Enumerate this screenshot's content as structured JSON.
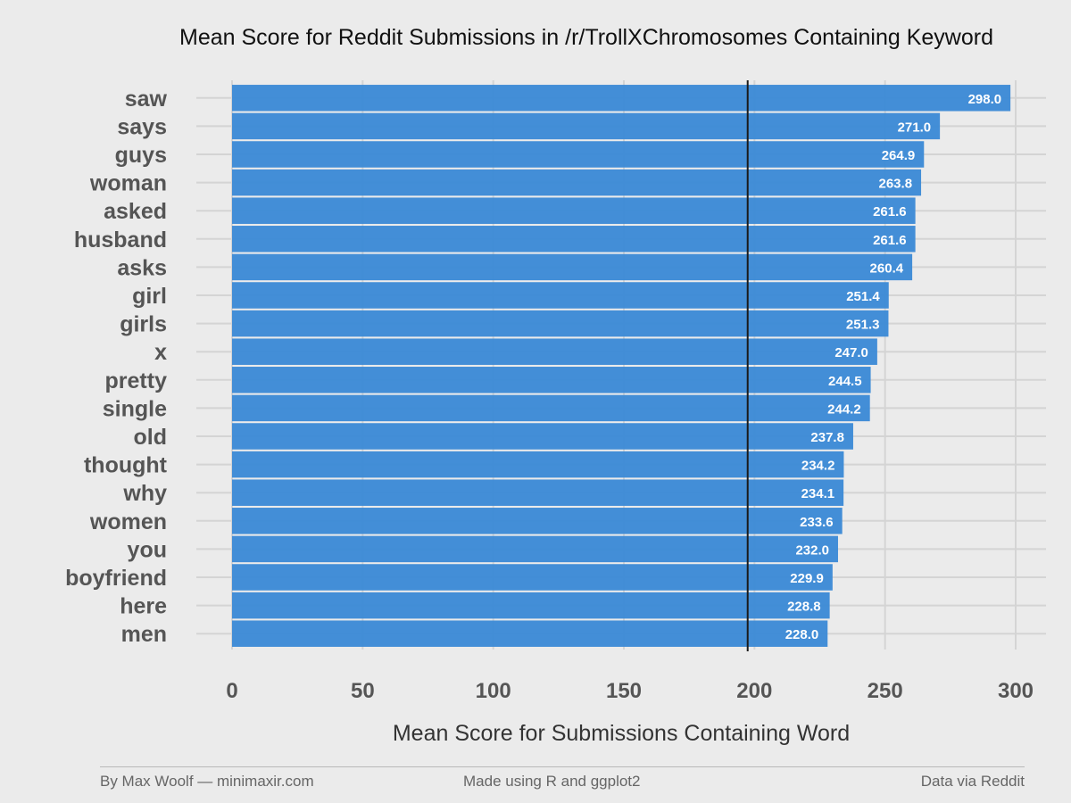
{
  "chart_data": {
    "type": "bar",
    "orientation": "horizontal",
    "title": "Mean Score for Reddit Submissions in /r/TrollXChromosomes Containing Keyword",
    "xlabel": "Mean Score for Submissions Containing Word",
    "ylabel": "",
    "xlim": [
      0,
      300
    ],
    "xticks": [
      0,
      50,
      100,
      150,
      200,
      250,
      300
    ],
    "grid": true,
    "bar_color": "#3a89d6",
    "reference_line": {
      "value": 197.4,
      "color": "#1a1a1a"
    },
    "categories": [
      "saw",
      "says",
      "guys",
      "woman",
      "asked",
      "husband",
      "asks",
      "girl",
      "girls",
      "x",
      "pretty",
      "single",
      "old",
      "thought",
      "why",
      "women",
      "you",
      "boyfriend",
      "here",
      "men"
    ],
    "values": [
      298.0,
      271.0,
      264.9,
      263.8,
      261.6,
      261.6,
      260.4,
      251.4,
      251.3,
      247.0,
      244.5,
      244.2,
      237.8,
      234.2,
      234.1,
      233.6,
      232.0,
      229.9,
      228.8,
      228.0
    ],
    "value_labels": [
      "298.0",
      "271.0",
      "264.9",
      "263.8",
      "261.6",
      "261.6",
      "260.4",
      "251.4",
      "251.3",
      "247.0",
      "244.5",
      "244.2",
      "237.8",
      "234.2",
      "234.1",
      "233.6",
      "232.0",
      "229.9",
      "228.8",
      "228.0"
    ]
  },
  "footer": {
    "left": "By Max Woolf — minimaxir.com",
    "center": "Made using R and ggplot2",
    "right": "Data via Reddit"
  }
}
